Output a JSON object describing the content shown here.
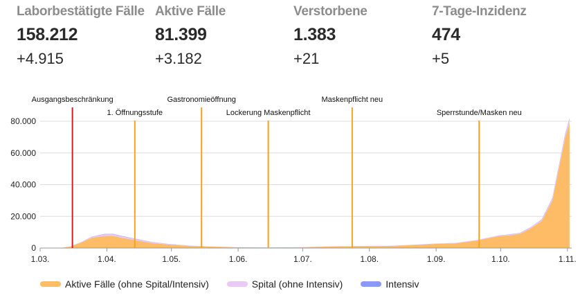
{
  "kpis": [
    {
      "label": "Laborbestätigte Fälle",
      "value": "158.212",
      "delta": "+4.915"
    },
    {
      "label": "Aktive Fälle",
      "value": "81.399",
      "delta": "+3.182"
    },
    {
      "label": "Verstorbene",
      "value": "1.383",
      "delta": "+21"
    },
    {
      "label": "7-Tage-Inzidenz",
      "value": "474",
      "delta": "+5"
    }
  ],
  "chart_data": {
    "type": "area",
    "stacked": true,
    "x_tick_labels": [
      "1.03.",
      "1.04.",
      "1.05.",
      "1.06.",
      "1.07.",
      "1.08.",
      "1.09.",
      "1.10.",
      "1.11."
    ],
    "y_tick_labels": [
      "0",
      "20.000",
      "40.000",
      "60.000",
      "80.000"
    ],
    "ylim": [
      0,
      80000
    ],
    "x": [
      "2020-03-01",
      "2020-03-10",
      "2020-03-15",
      "2020-03-20",
      "2020-03-25",
      "2020-03-31",
      "2020-04-04",
      "2020-04-08",
      "2020-04-15",
      "2020-04-22",
      "2020-04-30",
      "2020-05-10",
      "2020-05-20",
      "2020-05-31",
      "2020-06-15",
      "2020-06-30",
      "2020-07-15",
      "2020-07-31",
      "2020-08-10",
      "2020-08-20",
      "2020-08-31",
      "2020-09-10",
      "2020-09-20",
      "2020-09-30",
      "2020-10-05",
      "2020-10-10",
      "2020-10-15",
      "2020-10-20",
      "2020-10-25",
      "2020-10-28",
      "2020-10-31",
      "2020-11-02"
    ],
    "series": [
      {
        "name": "Aktive Fälle (ohne Spital/Intensiv)",
        "color": "#ffbc66",
        "values": [
          0,
          0,
          1000,
          3500,
          6500,
          7800,
          7700,
          6500,
          4800,
          3200,
          2200,
          1300,
          900,
          500,
          400,
          500,
          1000,
          1200,
          1300,
          1800,
          2600,
          3000,
          4800,
          7500,
          8000,
          9000,
          12500,
          17000,
          30000,
          50000,
          70000,
          79000
        ]
      },
      {
        "name": "Spital (ohne Intensiv)",
        "color": "#ecc8f5",
        "values": [
          0,
          0,
          50,
          200,
          600,
          900,
          1000,
          900,
          700,
          500,
          300,
          150,
          80,
          50,
          40,
          40,
          60,
          80,
          100,
          120,
          150,
          200,
          300,
          400,
          450,
          500,
          600,
          800,
          1200,
          1600,
          2000,
          2300
        ]
      },
      {
        "name": "Intensiv",
        "color": "#8a99f7",
        "values": [
          0,
          0,
          10,
          40,
          120,
          200,
          230,
          220,
          180,
          130,
          90,
          50,
          30,
          20,
          15,
          15,
          20,
          25,
          30,
          35,
          40,
          50,
          70,
          90,
          100,
          120,
          150,
          200,
          300,
          380,
          450,
          500
        ]
      }
    ],
    "annotations": [
      {
        "label": "Ausgangsbeschränkung",
        "x": "2020-03-16",
        "color": "#d71a2b"
      },
      {
        "label": "1. Öffnungsstufe",
        "x": "2020-04-14",
        "color": "#f7a21f"
      },
      {
        "label": "Gastronomieöffnung",
        "x": "2020-05-15",
        "color": "#f7a21f"
      },
      {
        "label": "Lockerung Maskenpflicht",
        "x": "2020-06-15",
        "color": "#f7a21f"
      },
      {
        "label": "Maskenpflicht neu",
        "x": "2020-07-24",
        "color": "#f7a21f"
      },
      {
        "label": "Sperrstunde/Masken neu",
        "x": "2020-09-21",
        "color": "#f7a21f"
      }
    ],
    "grid": true,
    "legend_position": "bottom-left"
  }
}
